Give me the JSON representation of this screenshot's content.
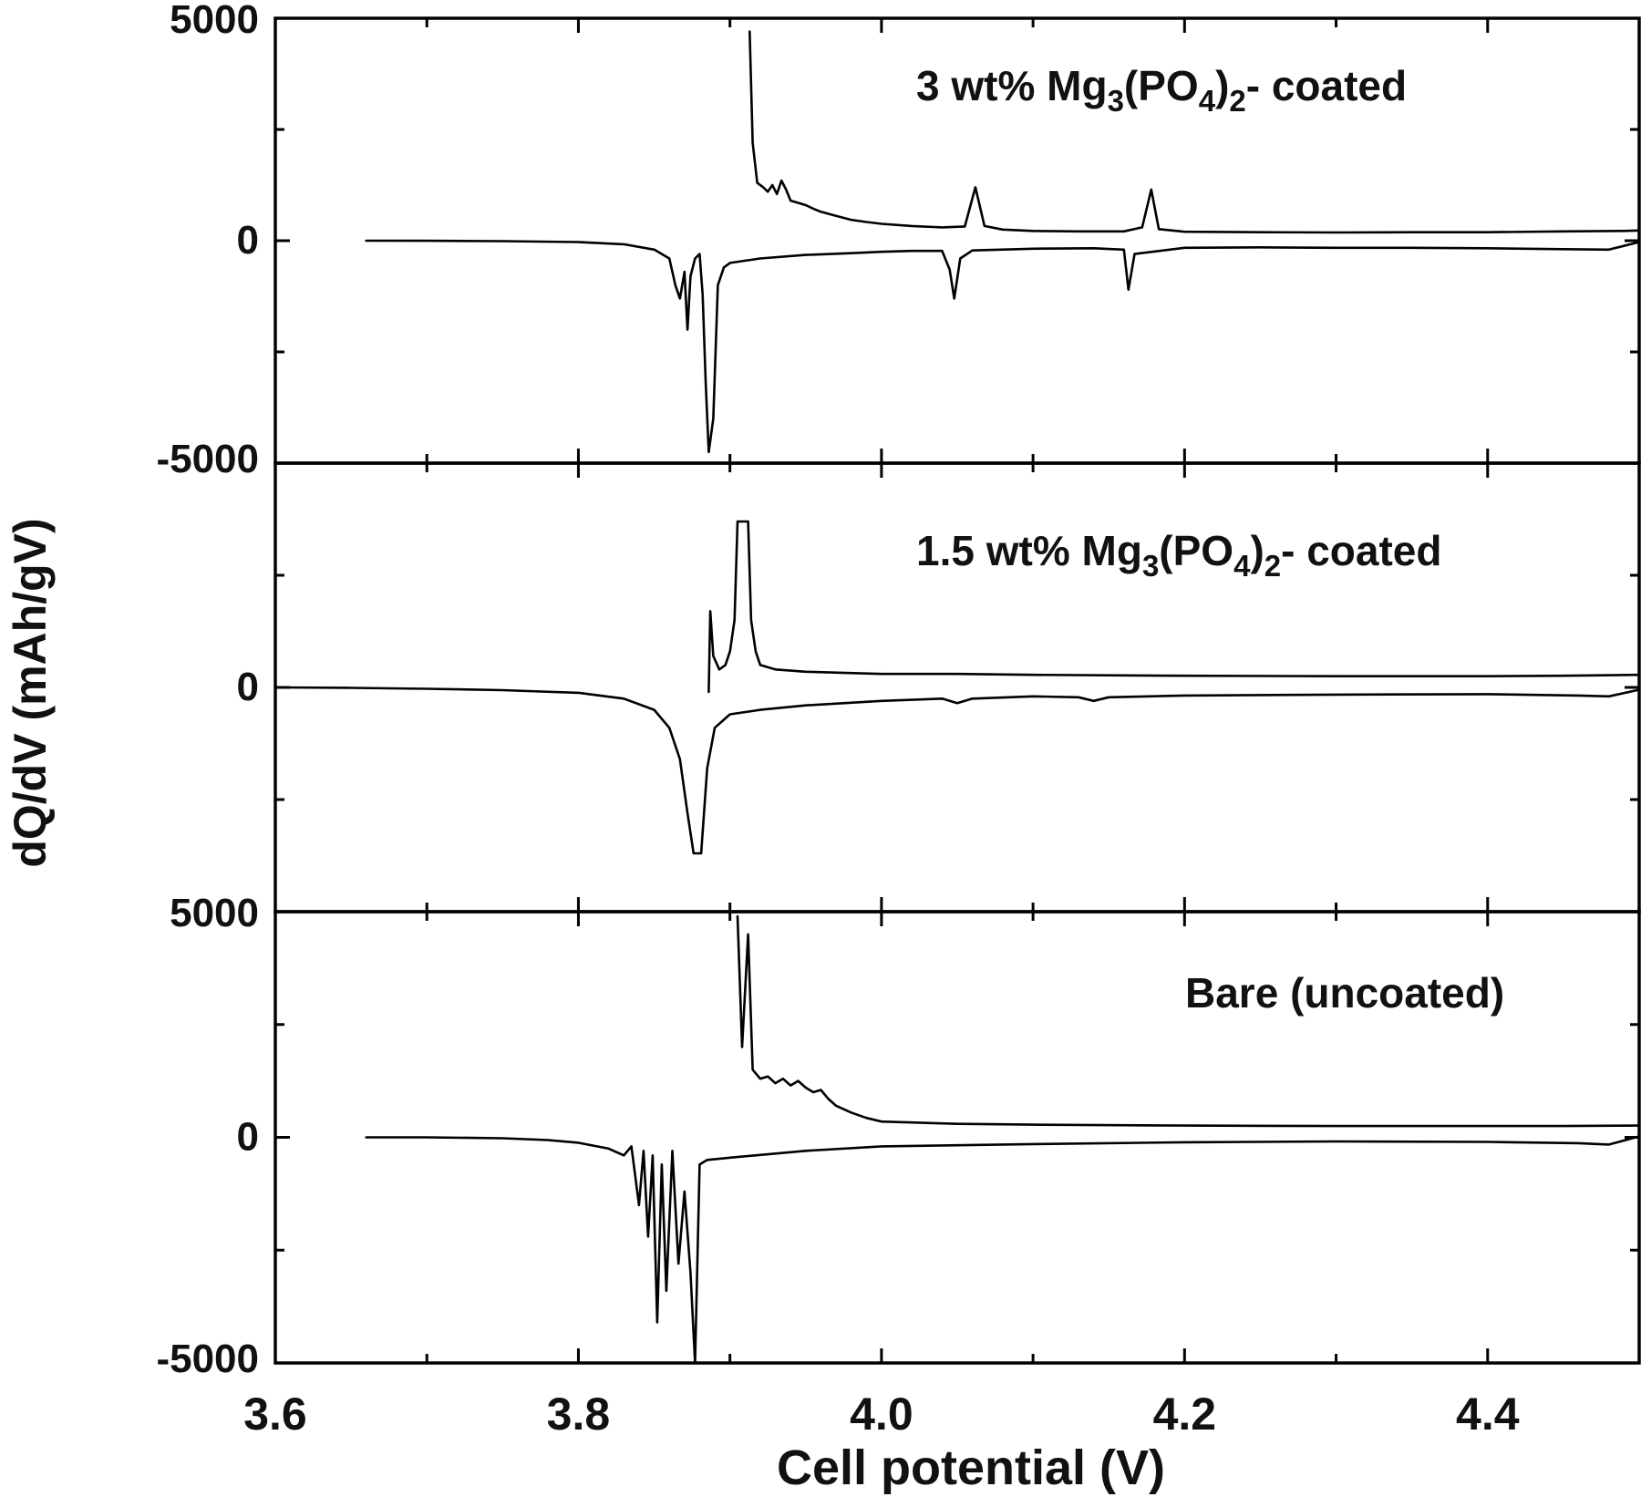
{
  "chart_data": {
    "type": "line",
    "xlabel": "Cell potential (V)",
    "ylabel": "dQ/dV (mAh/gV)",
    "xlim": [
      3.6,
      4.5
    ],
    "x_ticks": [
      "3.6",
      "3.8",
      "4.0",
      "4.2",
      "4.4"
    ],
    "grid": false,
    "panels": [
      {
        "label": {
          "pre": "3 wt% Mg",
          "sub1": "3",
          "mid": "(PO",
          "sub2": "4",
          "post": ")",
          "sub3": "2",
          "tail": "- coated"
        },
        "ylim": [
          -5000,
          5000
        ],
        "y_tick_labels": [
          "5000",
          "0",
          "-5000"
        ],
        "series": [
          {
            "role": "charge",
            "points": [
              [
                3.913,
                4700
              ],
              [
                3.915,
                2200
              ],
              [
                3.918,
                1300
              ],
              [
                3.922,
                1200
              ],
              [
                3.925,
                1100
              ],
              [
                3.928,
                1250
              ],
              [
                3.931,
                1050
              ],
              [
                3.934,
                1350
              ],
              [
                3.937,
                1150
              ],
              [
                3.94,
                900
              ],
              [
                3.945,
                850
              ],
              [
                3.95,
                800
              ],
              [
                3.955,
                720
              ],
              [
                3.96,
                650
              ],
              [
                3.97,
                560
              ],
              [
                3.98,
                470
              ],
              [
                3.99,
                420
              ],
              [
                4.0,
                380
              ],
              [
                4.02,
                330
              ],
              [
                4.04,
                300
              ],
              [
                4.055,
                320
              ],
              [
                4.062,
                1200
              ],
              [
                4.068,
                330
              ],
              [
                4.08,
                250
              ],
              [
                4.1,
                220
              ],
              [
                4.13,
                210
              ],
              [
                4.16,
                210
              ],
              [
                4.172,
                300
              ],
              [
                4.178,
                1150
              ],
              [
                4.183,
                260
              ],
              [
                4.2,
                200
              ],
              [
                4.25,
                190
              ],
              [
                4.3,
                185
              ],
              [
                4.35,
                190
              ],
              [
                4.4,
                190
              ],
              [
                4.45,
                210
              ],
              [
                4.49,
                220
              ],
              [
                4.5,
                230
              ]
            ]
          },
          {
            "role": "discharge",
            "points": [
              [
                3.66,
                0
              ],
              [
                3.7,
                -2
              ],
              [
                3.75,
                -10
              ],
              [
                3.8,
                -30
              ],
              [
                3.83,
                -80
              ],
              [
                3.85,
                -200
              ],
              [
                3.86,
                -400
              ],
              [
                3.864,
                -1000
              ],
              [
                3.867,
                -1300
              ],
              [
                3.87,
                -700
              ],
              [
                3.872,
                -2000
              ],
              [
                3.874,
                -800
              ],
              [
                3.877,
                -400
              ],
              [
                3.88,
                -300
              ],
              [
                3.882,
                -1200
              ],
              [
                3.884,
                -3200
              ],
              [
                3.886,
                -4750
              ],
              [
                3.889,
                -4000
              ],
              [
                3.892,
                -1000
              ],
              [
                3.896,
                -600
              ],
              [
                3.9,
                -500
              ],
              [
                3.92,
                -400
              ],
              [
                3.95,
                -320
              ],
              [
                3.98,
                -280
              ],
              [
                4.0,
                -250
              ],
              [
                4.02,
                -230
              ],
              [
                4.04,
                -230
              ],
              [
                4.045,
                -650
              ],
              [
                4.048,
                -1300
              ],
              [
                4.052,
                -400
              ],
              [
                4.06,
                -220
              ],
              [
                4.1,
                -180
              ],
              [
                4.14,
                -170
              ],
              [
                4.16,
                -200
              ],
              [
                4.163,
                -1100
              ],
              [
                4.167,
                -300
              ],
              [
                4.2,
                -160
              ],
              [
                4.25,
                -150
              ],
              [
                4.3,
                -160
              ],
              [
                4.35,
                -160
              ],
              [
                4.4,
                -170
              ],
              [
                4.45,
                -190
              ],
              [
                4.48,
                -200
              ],
              [
                4.5,
                -30
              ]
            ]
          }
        ]
      },
      {
        "label": {
          "pre": "1.5 wt% Mg",
          "sub1": "3",
          "mid": "(PO",
          "sub2": "4",
          "post": ")",
          "sub3": "2",
          "tail": "- coated"
        },
        "ylim": [
          -5000,
          5000
        ],
        "y_tick_labels": [
          "0"
        ],
        "series": [
          {
            "role": "charge",
            "points": [
              [
                3.886,
                -100
              ],
              [
                3.887,
                1700
              ],
              [
                3.889,
                700
              ],
              [
                3.893,
                400
              ],
              [
                3.897,
                500
              ],
              [
                3.9,
                800
              ],
              [
                3.903,
                1500
              ],
              [
                3.905,
                3700
              ],
              [
                3.912,
                3700
              ],
              [
                3.914,
                1500
              ],
              [
                3.917,
                800
              ],
              [
                3.92,
                500
              ],
              [
                3.93,
                400
              ],
              [
                3.95,
                350
              ],
              [
                4.0,
                300
              ],
              [
                4.05,
                300
              ],
              [
                4.1,
                280
              ],
              [
                4.2,
                260
              ],
              [
                4.3,
                250
              ],
              [
                4.4,
                250
              ],
              [
                4.45,
                260
              ],
              [
                4.5,
                280
              ]
            ]
          },
          {
            "role": "discharge",
            "points": [
              [
                3.6,
                0
              ],
              [
                3.65,
                -10
              ],
              [
                3.7,
                -30
              ],
              [
                3.75,
                -60
              ],
              [
                3.8,
                -120
              ],
              [
                3.83,
                -250
              ],
              [
                3.85,
                -500
              ],
              [
                3.86,
                -900
              ],
              [
                3.867,
                -1600
              ],
              [
                3.872,
                -2800
              ],
              [
                3.876,
                -3700
              ],
              [
                3.881,
                -3700
              ],
              [
                3.885,
                -1800
              ],
              [
                3.89,
                -900
              ],
              [
                3.9,
                -600
              ],
              [
                3.92,
                -500
              ],
              [
                3.95,
                -400
              ],
              [
                4.0,
                -300
              ],
              [
                4.04,
                -250
              ],
              [
                4.05,
                -350
              ],
              [
                4.06,
                -250
              ],
              [
                4.1,
                -200
              ],
              [
                4.13,
                -220
              ],
              [
                4.14,
                -300
              ],
              [
                4.15,
                -220
              ],
              [
                4.2,
                -180
              ],
              [
                4.3,
                -160
              ],
              [
                4.4,
                -150
              ],
              [
                4.46,
                -180
              ],
              [
                4.48,
                -200
              ],
              [
                4.5,
                -50
              ]
            ]
          }
        ]
      },
      {
        "label": {
          "pre": "Bare (uncoated)"
        },
        "ylim": [
          -5000,
          5000
        ],
        "y_tick_labels": [
          "5000",
          "0",
          "-5000"
        ],
        "series": [
          {
            "role": "charge",
            "points": [
              [
                3.905,
                4900
              ],
              [
                3.908,
                2000
              ],
              [
                3.912,
                4500
              ],
              [
                3.915,
                1500
              ],
              [
                3.92,
                1300
              ],
              [
                3.925,
                1350
              ],
              [
                3.93,
                1200
              ],
              [
                3.935,
                1300
              ],
              [
                3.94,
                1150
              ],
              [
                3.945,
                1250
              ],
              [
                3.95,
                1100
              ],
              [
                3.955,
                1000
              ],
              [
                3.96,
                1050
              ],
              [
                3.965,
                850
              ],
              [
                3.97,
                700
              ],
              [
                3.98,
                550
              ],
              [
                3.99,
                430
              ],
              [
                4.0,
                350
              ],
              [
                4.05,
                300
              ],
              [
                4.1,
                280
              ],
              [
                4.2,
                260
              ],
              [
                4.3,
                250
              ],
              [
                4.4,
                250
              ],
              [
                4.45,
                250
              ],
              [
                4.5,
                260
              ]
            ]
          },
          {
            "role": "discharge",
            "points": [
              [
                3.66,
                0
              ],
              [
                3.7,
                0
              ],
              [
                3.75,
                -20
              ],
              [
                3.78,
                -60
              ],
              [
                3.8,
                -120
              ],
              [
                3.82,
                -250
              ],
              [
                3.83,
                -400
              ],
              [
                3.835,
                -200
              ],
              [
                3.84,
                -1500
              ],
              [
                3.843,
                -300
              ],
              [
                3.846,
                -2200
              ],
              [
                3.849,
                -400
              ],
              [
                3.852,
                -4100
              ],
              [
                3.855,
                -600
              ],
              [
                3.858,
                -3400
              ],
              [
                3.862,
                -300
              ],
              [
                3.866,
                -2800
              ],
              [
                3.87,
                -1200
              ],
              [
                3.874,
                -3000
              ],
              [
                3.877,
                -5000
              ],
              [
                3.88,
                -600
              ],
              [
                3.885,
                -500
              ],
              [
                3.9,
                -450
              ],
              [
                3.95,
                -300
              ],
              [
                4.0,
                -200
              ],
              [
                4.1,
                -150
              ],
              [
                4.2,
                -110
              ],
              [
                4.3,
                -90
              ],
              [
                4.4,
                -100
              ],
              [
                4.46,
                -130
              ],
              [
                4.48,
                -160
              ],
              [
                4.5,
                20
              ]
            ]
          }
        ]
      }
    ]
  }
}
